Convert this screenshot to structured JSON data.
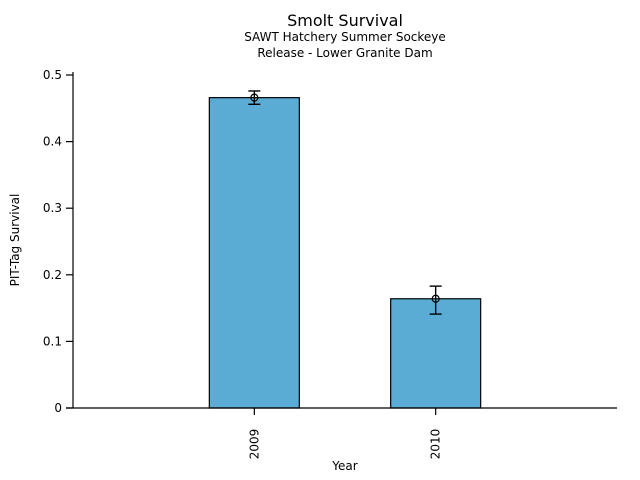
{
  "chart_data": {
    "type": "bar",
    "title": "Smolt Survival",
    "subtitle_line1": "SAWT Hatchery Summer Sockeye",
    "subtitle_line2": "Release - Lower Granite Dam",
    "xlabel": "Year",
    "ylabel": "PIT-Tag Survival",
    "categories": [
      "2009",
      "2010"
    ],
    "values": [
      0.466,
      0.164
    ],
    "error_bars": [
      {
        "upper": 0.476,
        "lower": 0.456
      },
      {
        "upper": 0.183,
        "lower": 0.141
      }
    ],
    "error_marker": "open-circle",
    "ylim": [
      0,
      0.5
    ],
    "yticks": [
      0,
      0.1,
      0.2,
      0.3,
      0.4,
      0.5
    ],
    "ytick_labels": [
      "0",
      "0.1",
      "0.2",
      "0.3",
      "0.4",
      "0.5"
    ],
    "xtick_label_rotation_deg": 90,
    "grid": false,
    "colors": {
      "bar_fill": "#5AACD5",
      "bar_edge": "#000000",
      "axis": "#000000",
      "error_bar": "#000000",
      "background": "#FFFFFF"
    }
  }
}
